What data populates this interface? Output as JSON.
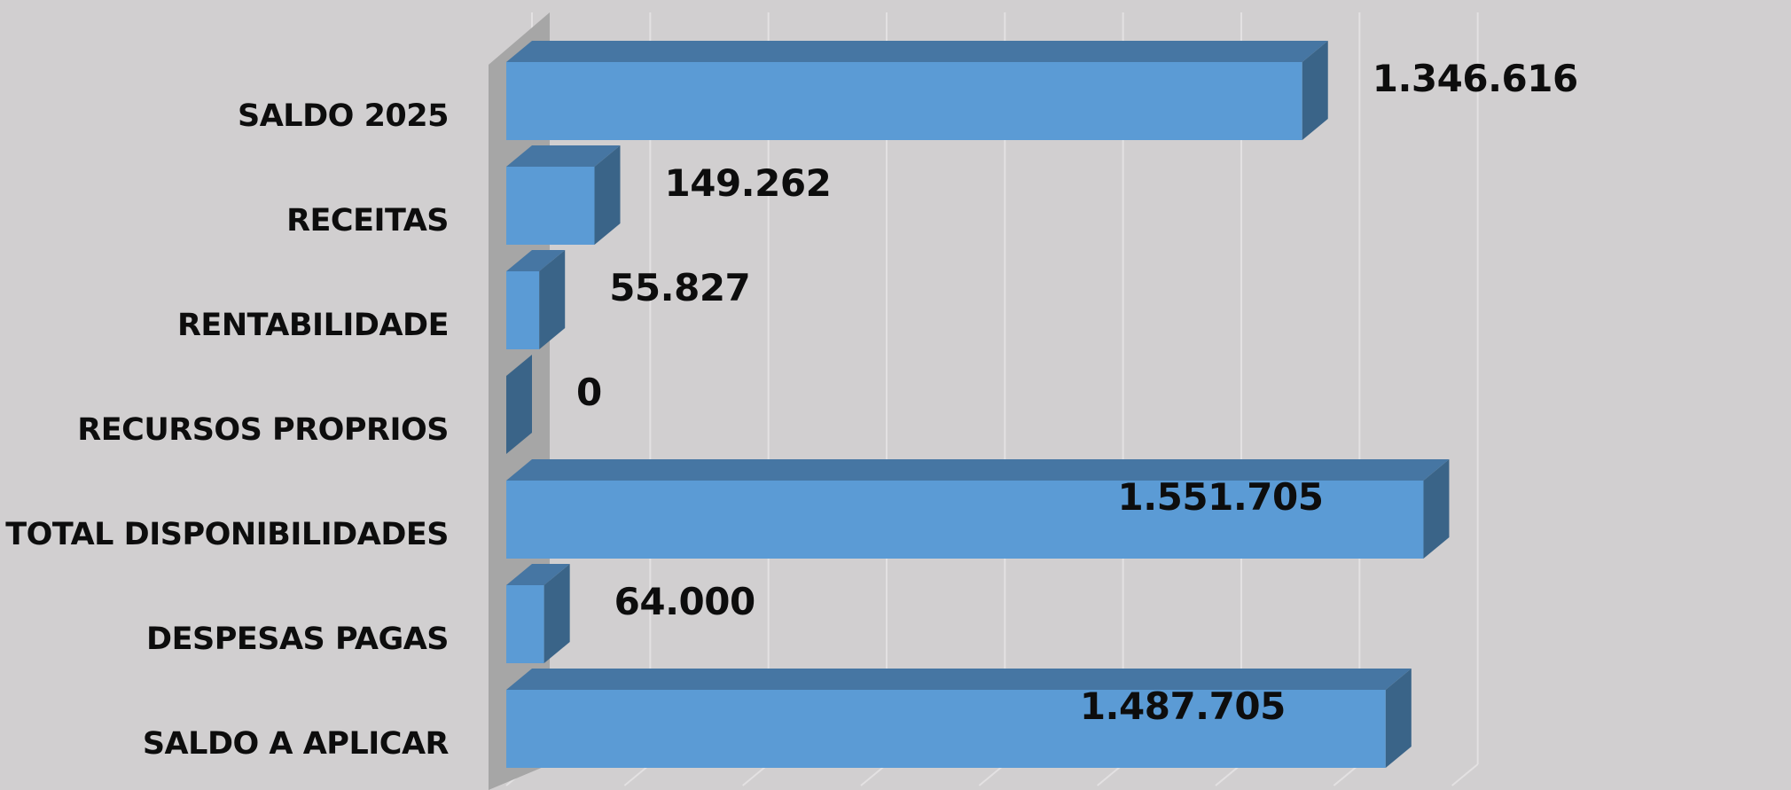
{
  "colors": {
    "background": "#d1cfd0",
    "bar_front": "#5b9bd5",
    "bar_top": "#4676a3",
    "bar_side": "#3a6488",
    "axis_wall": "#a6a6a6",
    "gridline": "#e3e1e2",
    "text": "#0d0d0d"
  },
  "chart_data": {
    "type": "bar",
    "orientation": "horizontal",
    "style": "3d",
    "title": "",
    "xlabel": "",
    "ylabel": "",
    "categories": [
      "SALDO 2025",
      "RECEITAS",
      "RENTABILIDADE",
      "RECURSOS PROPRIOS",
      "TOTAL DISPONIBILIDADES",
      "DESPESAS PAGAS",
      "SALDO A APLICAR"
    ],
    "values": [
      1346616,
      149262,
      55827,
      0,
      1551705,
      64000,
      1487705
    ],
    "data_labels": [
      "1.346.616",
      "149.262",
      "55.827",
      "0",
      "1.551.705",
      "64.000",
      "1.487.705"
    ],
    "data_label_position": [
      "outside",
      "outside",
      "outside",
      "outside",
      "inside",
      "outside",
      "inside"
    ],
    "xlim": [
      0,
      1600000
    ],
    "grid": true,
    "legend": "none"
  }
}
